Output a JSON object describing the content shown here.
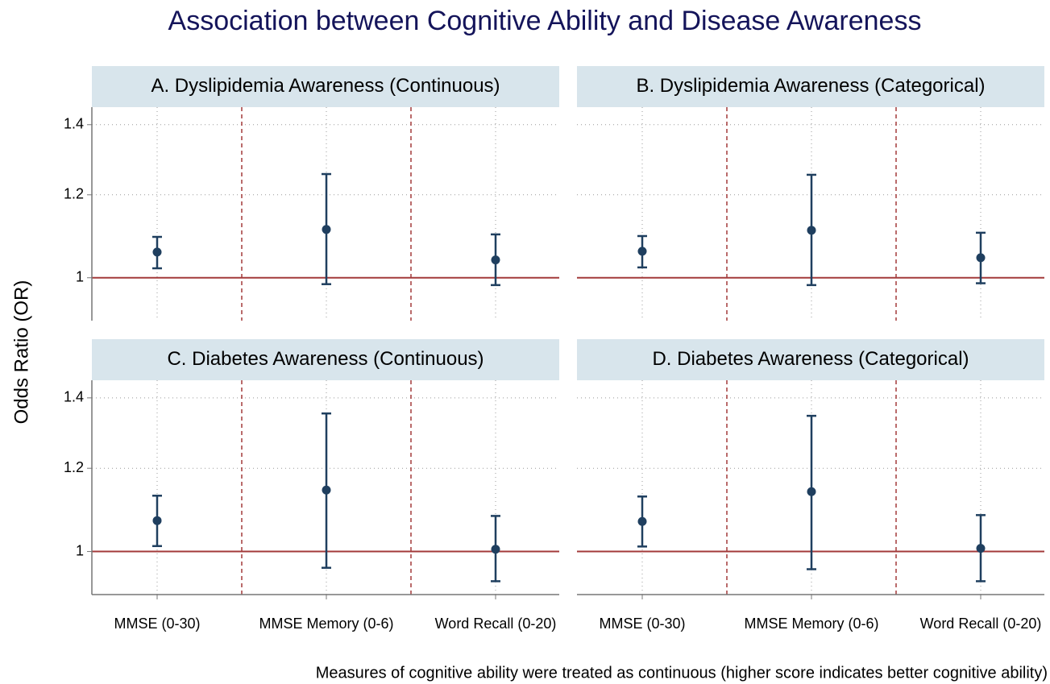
{
  "title": "Association between Cognitive Ability and Disease Awareness",
  "y_label": "Odds Ratio (OR)",
  "note": "Measures of cognitive ability were treated as continuous (higher score indicates better cognitive ability)",
  "chart_data": [
    {
      "type": "errorbar",
      "title": "A. Dyslipidemia Awareness (Continuous)",
      "values": [
        1.058,
        1.112,
        1.04
      ],
      "lower": [
        1.021,
        0.986,
        0.984
      ],
      "upper": [
        1.094,
        1.256,
        1.1
      ],
      "ylim": [
        0.91,
        1.455
      ],
      "yticks": [
        1,
        1.2,
        1.4
      ],
      "log_y": true,
      "reference_line": 1,
      "color": "#1f3f5f",
      "grid": true
    },
    {
      "type": "errorbar",
      "title": "B. Dyslipidemia Awareness (Categorical)",
      "values": [
        1.06,
        1.11,
        1.045
      ],
      "lower": [
        1.023,
        0.984,
        0.988
      ],
      "upper": [
        1.096,
        1.254,
        1.104
      ],
      "ylim": [
        0.91,
        1.455
      ],
      "yticks": [
        1,
        1.2,
        1.4
      ],
      "log_y": true,
      "reference_line": 1,
      "color": "#1f3f5f",
      "grid": true
    },
    {
      "type": "errorbar",
      "title": "C. Diabetes Awareness (Continuous)",
      "categories": [
        "MMSE (0-30)",
        "MMSE Memory (0-6)",
        "Word Recall (0-20)"
      ],
      "values": [
        1.07,
        1.144,
        1.005
      ],
      "lower": [
        1.012,
        0.965,
        0.937
      ],
      "upper": [
        1.13,
        1.353,
        1.081
      ],
      "ylim": [
        0.91,
        1.455
      ],
      "yticks": [
        1,
        1.2,
        1.4
      ],
      "log_y": true,
      "reference_line": 1,
      "color": "#1f3f5f",
      "grid": true
    },
    {
      "type": "errorbar",
      "title": "D. Diabetes Awareness (Categorical)",
      "categories": [
        "MMSE (0-30)",
        "MMSE Memory (0-6)",
        "Word Recall (0-20)"
      ],
      "values": [
        1.068,
        1.14,
        1.007
      ],
      "lower": [
        1.011,
        0.962,
        0.937
      ],
      "upper": [
        1.128,
        1.346,
        1.083
      ],
      "ylim": [
        0.91,
        1.455
      ],
      "yticks": [
        1,
        1.2,
        1.4
      ],
      "log_y": true,
      "reference_line": 1,
      "color": "#1f3f5f",
      "grid": true
    }
  ]
}
